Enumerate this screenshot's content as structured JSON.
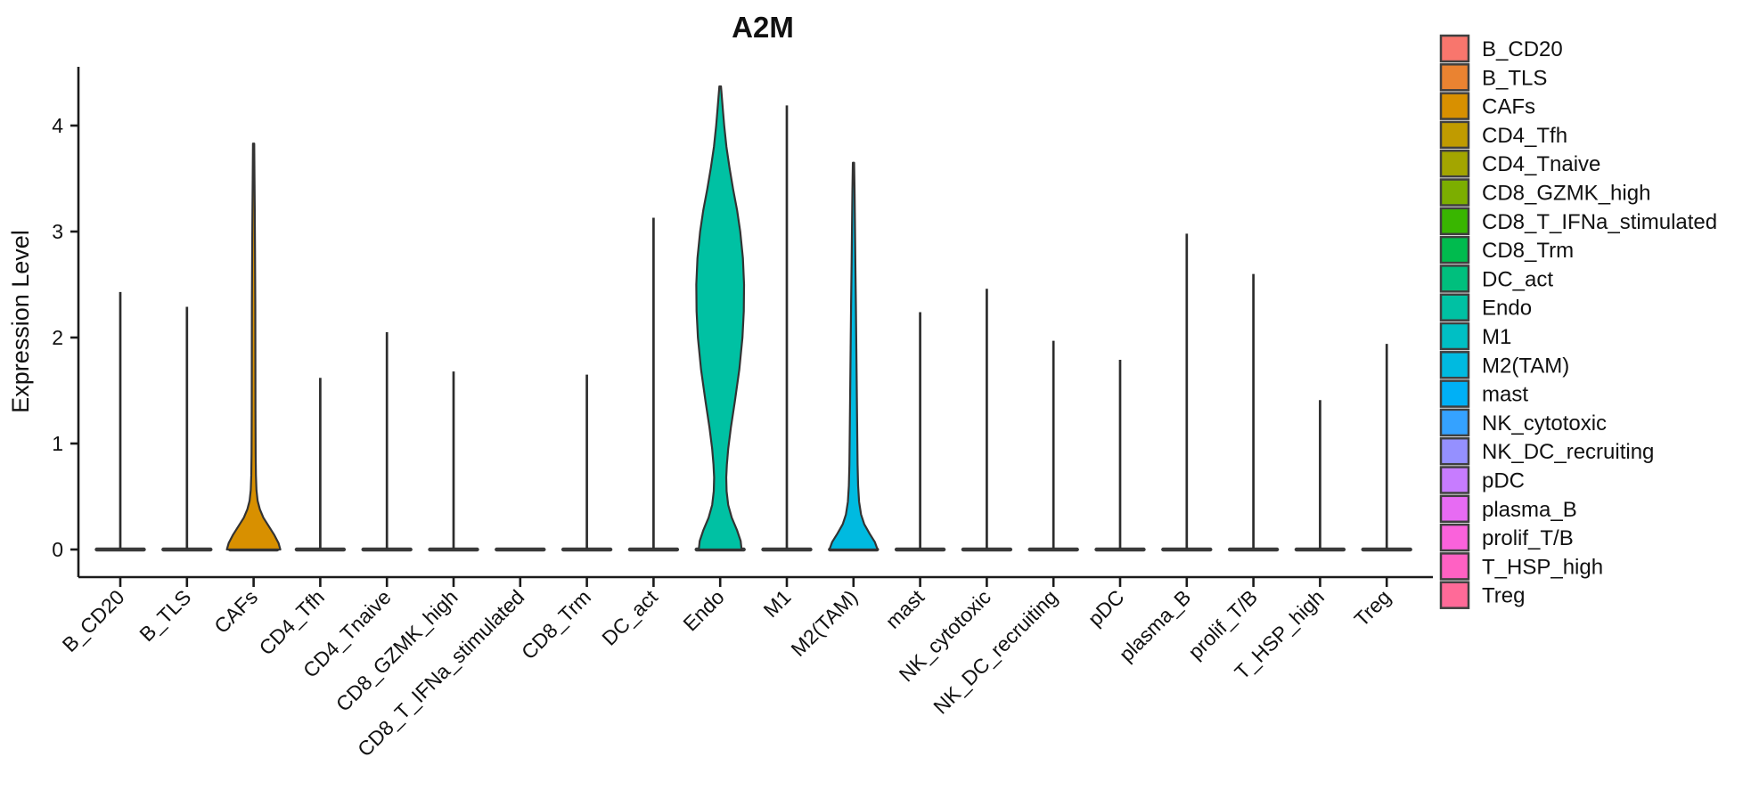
{
  "title": "A2M",
  "y_axis": {
    "label": "Expression Level",
    "tick_labels": [
      "0",
      "1",
      "2",
      "3",
      "4"
    ]
  },
  "chart_data": {
    "type": "violin",
    "title": "A2M",
    "xlabel": "",
    "ylabel": "Expression Level",
    "ylim": [
      -0.26,
      4.55
    ],
    "yticks": [
      0,
      1,
      2,
      3,
      4
    ],
    "grid": false,
    "legend_position": "right",
    "x_tick_angle_deg": 45,
    "categories": [
      "B_CD20",
      "B_TLS",
      "CAFs",
      "CD4_Tfh",
      "CD4_Tnaive",
      "CD8_GZMK_high",
      "CD8_T_IFNa_stimulated",
      "CD8_Trm",
      "DC_act",
      "Endo",
      "M1",
      "M2(TAM)",
      "mast",
      "NK_cytotoxic",
      "NK_DC_recruiting",
      "pDC",
      "plasma_B",
      "prolif_T/B",
      "T_HSP_high",
      "Treg"
    ],
    "series": [
      {
        "name": "B_CD20",
        "color": "#F8766D",
        "max_expression": 2.43,
        "bulk_at_zero": true
      },
      {
        "name": "B_TLS",
        "color": "#EA8331",
        "max_expression": 2.29,
        "bulk_at_zero": true
      },
      {
        "name": "CAFs",
        "color": "#D89000",
        "max_expression": 3.83,
        "bulk_at_zero": true,
        "profile": [
          [
            0,
            30
          ],
          [
            0.06,
            28
          ],
          [
            0.14,
            23
          ],
          [
            0.22,
            17
          ],
          [
            0.3,
            11
          ],
          [
            0.38,
            7
          ],
          [
            0.46,
            4.5
          ],
          [
            0.56,
            3.2
          ],
          [
            0.7,
            2.6
          ],
          [
            0.9,
            2.3
          ],
          [
            1.3,
            2.1
          ],
          [
            1.8,
            2.0
          ],
          [
            2.3,
            1.9
          ],
          [
            2.8,
            1.6
          ],
          [
            3.2,
            1.3
          ],
          [
            3.5,
            1.0
          ],
          [
            3.83,
            0.7
          ]
        ]
      },
      {
        "name": "CD4_Tfh",
        "color": "#C09B00",
        "max_expression": 1.62,
        "bulk_at_zero": true
      },
      {
        "name": "CD4_Tnaive",
        "color": "#A3A500",
        "max_expression": 2.05,
        "bulk_at_zero": true
      },
      {
        "name": "CD8_GZMK_high",
        "color": "#7CAE00",
        "max_expression": 1.68,
        "bulk_at_zero": true
      },
      {
        "name": "CD8_T_IFNa_stimulated",
        "color": "#39B600",
        "max_expression": 0.0,
        "bulk_at_zero": true
      },
      {
        "name": "CD8_Trm",
        "color": "#00BB4E",
        "max_expression": 1.65,
        "bulk_at_zero": true
      },
      {
        "name": "DC_act",
        "color": "#00BF7D",
        "max_expression": 3.13,
        "bulk_at_zero": true
      },
      {
        "name": "Endo",
        "color": "#00C1A3",
        "max_expression": 4.37,
        "bulk_at_zero": false,
        "profile": [
          [
            0,
            24
          ],
          [
            0.08,
            23
          ],
          [
            0.18,
            19
          ],
          [
            0.3,
            13
          ],
          [
            0.42,
            9
          ],
          [
            0.55,
            7.2
          ],
          [
            0.68,
            6.8
          ],
          [
            0.8,
            7.5
          ],
          [
            0.95,
            9
          ],
          [
            1.15,
            12
          ],
          [
            1.4,
            16.5
          ],
          [
            1.7,
            21.5
          ],
          [
            2.0,
            25
          ],
          [
            2.25,
            26.5
          ],
          [
            2.5,
            26.8
          ],
          [
            2.75,
            25.5
          ],
          [
            3.0,
            22.5
          ],
          [
            3.2,
            19
          ],
          [
            3.4,
            14.5
          ],
          [
            3.6,
            10.5
          ],
          [
            3.8,
            7
          ],
          [
            4.0,
            4.5
          ],
          [
            4.15,
            3
          ],
          [
            4.37,
            0.9
          ]
        ]
      },
      {
        "name": "M1",
        "color": "#00BFC4",
        "max_expression": 4.19,
        "bulk_at_zero": true
      },
      {
        "name": "M2(TAM)",
        "color": "#00BAE0",
        "max_expression": 3.65,
        "bulk_at_zero": true,
        "profile": [
          [
            0,
            27
          ],
          [
            0.07,
            24
          ],
          [
            0.15,
            18
          ],
          [
            0.24,
            12
          ],
          [
            0.33,
            8.5
          ],
          [
            0.45,
            6.3
          ],
          [
            0.6,
            5.2
          ],
          [
            0.8,
            4.6
          ],
          [
            1.1,
            4.2
          ],
          [
            1.5,
            3.7
          ],
          [
            1.9,
            3.2
          ],
          [
            2.3,
            2.7
          ],
          [
            2.7,
            2.1
          ],
          [
            3.1,
            1.6
          ],
          [
            3.4,
            1.2
          ],
          [
            3.65,
            0.7
          ]
        ]
      },
      {
        "name": "mast",
        "color": "#00B0F6",
        "max_expression": 2.24,
        "bulk_at_zero": true
      },
      {
        "name": "NK_cytotoxic",
        "color": "#35A2FF",
        "max_expression": 2.46,
        "bulk_at_zero": true
      },
      {
        "name": "NK_DC_recruiting",
        "color": "#9590FF",
        "max_expression": 1.97,
        "bulk_at_zero": true
      },
      {
        "name": "pDC",
        "color": "#C77CFF",
        "max_expression": 1.79,
        "bulk_at_zero": true
      },
      {
        "name": "plasma_B",
        "color": "#E76BF3",
        "max_expression": 2.98,
        "bulk_at_zero": true
      },
      {
        "name": "prolif_T/B",
        "color": "#FA62DB",
        "max_expression": 2.6,
        "bulk_at_zero": true
      },
      {
        "name": "T_HSP_high",
        "color": "#FF61C3",
        "max_expression": 1.41,
        "bulk_at_zero": true
      },
      {
        "name": "Treg",
        "color": "#FF6A98",
        "max_expression": 1.94,
        "bulk_at_zero": true
      }
    ]
  }
}
